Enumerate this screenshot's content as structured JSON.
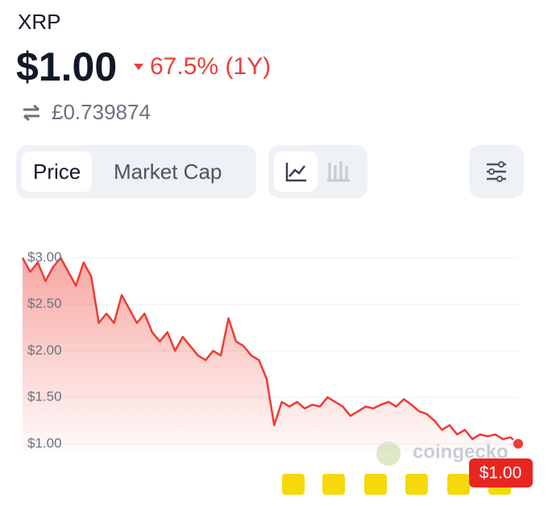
{
  "header": {
    "symbol": "XRP",
    "price": "$1.00",
    "change": "67.5% (1Y)",
    "converted": "£0.739874"
  },
  "tabs": [
    "Price",
    "Market Cap"
  ],
  "overlay": {
    "price_tag": "$1.00",
    "watermark": "coingecko"
  },
  "chart_data": {
    "type": "line",
    "color": "#ef3b33",
    "values": [
      3.0,
      2.85,
      2.95,
      2.75,
      2.9,
      3.0,
      2.85,
      2.7,
      2.95,
      2.8,
      2.3,
      2.4,
      2.3,
      2.6,
      2.45,
      2.3,
      2.4,
      2.2,
      2.1,
      2.2,
      2.0,
      2.15,
      2.05,
      1.95,
      1.9,
      2.0,
      1.95,
      2.35,
      2.1,
      2.05,
      1.95,
      1.9,
      1.7,
      1.2,
      1.45,
      1.4,
      1.45,
      1.38,
      1.42,
      1.4,
      1.5,
      1.45,
      1.4,
      1.3,
      1.35,
      1.4,
      1.38,
      1.42,
      1.45,
      1.4,
      1.48,
      1.42,
      1.35,
      1.32,
      1.25,
      1.15,
      1.2,
      1.1,
      1.15,
      1.05,
      1.1,
      1.08,
      1.1,
      1.05,
      1.07,
      1.0
    ],
    "ylim": [
      0.92,
      3.13
    ],
    "yticks": [
      {
        "value": 1,
        "label": "$1.00"
      },
      {
        "value": 1.5,
        "label": "$1.50"
      },
      {
        "value": 2,
        "label": "$2.00"
      },
      {
        "value": 2.5,
        "label": "$2.50"
      },
      {
        "value": 3,
        "label": "$3.00"
      }
    ],
    "grid": true
  }
}
